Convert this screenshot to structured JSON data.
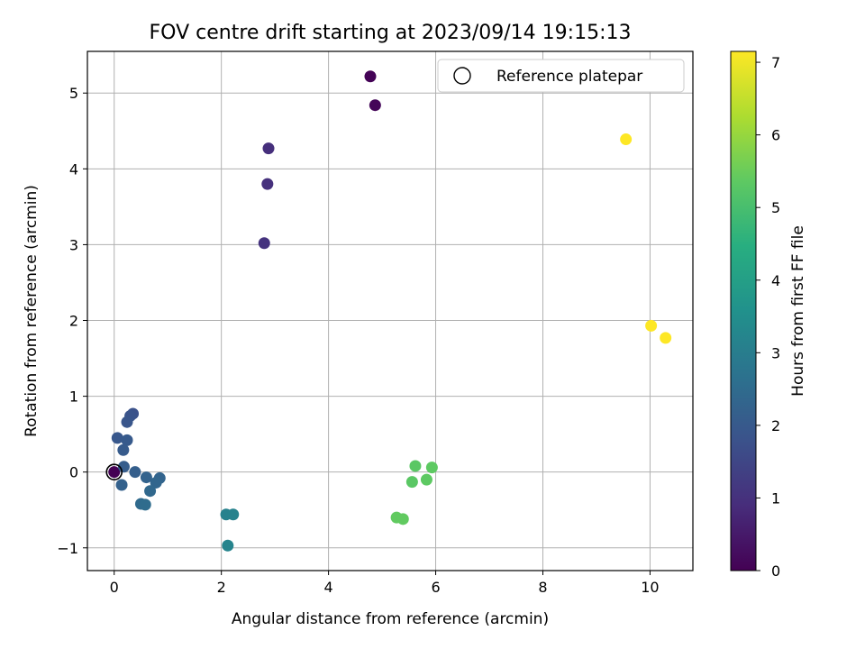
{
  "chart_data": {
    "type": "scatter",
    "title": "FOV centre drift starting at 2023/09/14 19:15:13",
    "xlabel": "Angular distance from reference (arcmin)",
    "ylabel": "Rotation from reference (arcmin)",
    "xlim": [
      -0.5,
      10.8
    ],
    "ylim": [
      -1.3,
      5.55
    ],
    "xticks": [
      0,
      2,
      4,
      6,
      8,
      10
    ],
    "yticks": [
      -1,
      0,
      1,
      2,
      3,
      4,
      5
    ],
    "grid": true,
    "legend": {
      "position": "upper right",
      "entries": [
        "Reference platepar"
      ]
    },
    "colorbar": {
      "label": "Hours from first FF file",
      "range": [
        0,
        7.15
      ],
      "ticks": [
        0,
        1,
        2,
        3,
        4,
        5,
        6,
        7
      ],
      "colormap": "viridis"
    },
    "reference_point": {
      "x": 0,
      "y": 0
    },
    "points": [
      {
        "x": 0.0,
        "y": 0.0,
        "hours": 0.0
      },
      {
        "x": 4.78,
        "y": 5.22,
        "hours": 0.05
      },
      {
        "x": 4.87,
        "y": 4.84,
        "hours": 0.1
      },
      {
        "x": 2.88,
        "y": 4.27,
        "hours": 0.95
      },
      {
        "x": 2.86,
        "y": 3.8,
        "hours": 1.0
      },
      {
        "x": 2.8,
        "y": 3.02,
        "hours": 1.05
      },
      {
        "x": 0.35,
        "y": 0.77,
        "hours": 1.8
      },
      {
        "x": 0.3,
        "y": 0.74,
        "hours": 1.85
      },
      {
        "x": 0.24,
        "y": 0.66,
        "hours": 1.9
      },
      {
        "x": 0.06,
        "y": 0.45,
        "hours": 1.95
      },
      {
        "x": 0.24,
        "y": 0.42,
        "hours": 2.0
      },
      {
        "x": 0.17,
        "y": 0.29,
        "hours": 2.05
      },
      {
        "x": 0.18,
        "y": 0.07,
        "hours": 2.1
      },
      {
        "x": 0.39,
        "y": 0.0,
        "hours": 2.15
      },
      {
        "x": 0.14,
        "y": -0.17,
        "hours": 2.2
      },
      {
        "x": 0.6,
        "y": -0.07,
        "hours": 2.25
      },
      {
        "x": 0.85,
        "y": -0.08,
        "hours": 2.3
      },
      {
        "x": 0.78,
        "y": -0.14,
        "hours": 2.35
      },
      {
        "x": 0.67,
        "y": -0.25,
        "hours": 2.4
      },
      {
        "x": 0.5,
        "y": -0.42,
        "hours": 2.45
      },
      {
        "x": 0.58,
        "y": -0.43,
        "hours": 2.5
      },
      {
        "x": 2.09,
        "y": -0.56,
        "hours": 3.1
      },
      {
        "x": 2.22,
        "y": -0.56,
        "hours": 3.15
      },
      {
        "x": 2.12,
        "y": -0.97,
        "hours": 3.2
      },
      {
        "x": 5.62,
        "y": 0.08,
        "hours": 5.3
      },
      {
        "x": 5.93,
        "y": 0.06,
        "hours": 5.35
      },
      {
        "x": 5.56,
        "y": -0.13,
        "hours": 5.3
      },
      {
        "x": 5.83,
        "y": -0.1,
        "hours": 5.35
      },
      {
        "x": 5.27,
        "y": -0.6,
        "hours": 5.4
      },
      {
        "x": 5.39,
        "y": -0.62,
        "hours": 5.4
      },
      {
        "x": 9.55,
        "y": 4.39,
        "hours": 7.15
      },
      {
        "x": 10.02,
        "y": 1.93,
        "hours": 7.15
      },
      {
        "x": 10.29,
        "y": 1.77,
        "hours": 7.15
      }
    ]
  }
}
